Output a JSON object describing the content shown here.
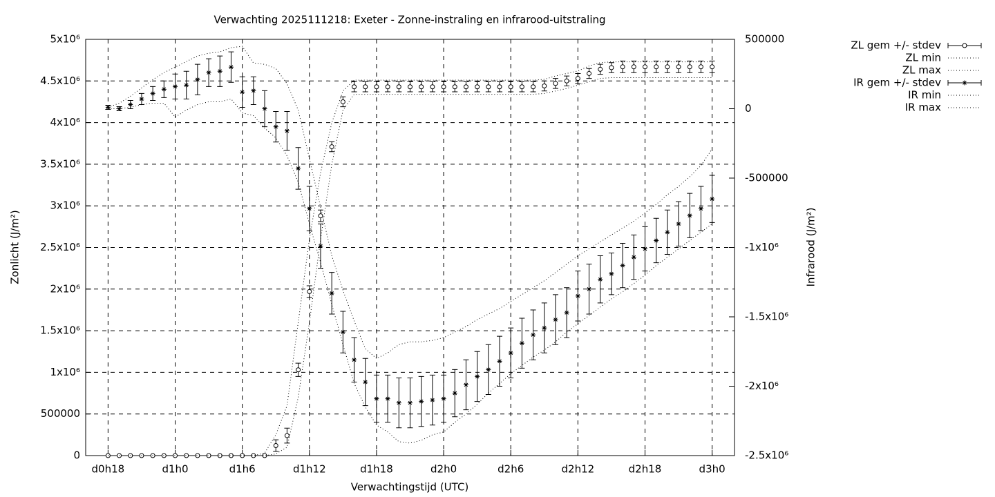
{
  "chart_data": {
    "type": "line",
    "title": "Verwachting 2025111218: Exeter - Zonne-instraling en infrarood-uitstraling",
    "x_label": "Verwachtingstijd (UTC)",
    "y_label": "Zonlicht (J/m²)",
    "y2_label": "Infrarood (J/m²)",
    "x": [
      18,
      19,
      20,
      21,
      22,
      23,
      24,
      25,
      26,
      27,
      28,
      29,
      30,
      31,
      32,
      33,
      34,
      35,
      36,
      37,
      38,
      39,
      40,
      41,
      42,
      43,
      44,
      45,
      46,
      47,
      48,
      49,
      50,
      51,
      52,
      53,
      54,
      55,
      56,
      57,
      58,
      59,
      60,
      61,
      62,
      63,
      64,
      65,
      66,
      67,
      68,
      69,
      70,
      71,
      72
    ],
    "xlim": [
      16,
      74
    ],
    "xticks": [
      {
        "value": 18,
        "label": "d0h18"
      },
      {
        "value": 24,
        "label": "d1h0"
      },
      {
        "value": 30,
        "label": "d1h6"
      },
      {
        "value": 36,
        "label": "d1h12"
      },
      {
        "value": 42,
        "label": "d1h18"
      },
      {
        "value": 48,
        "label": "d2h0"
      },
      {
        "value": 54,
        "label": "d2h6"
      },
      {
        "value": 60,
        "label": "d2h12"
      },
      {
        "value": 66,
        "label": "d2h18"
      },
      {
        "value": 72,
        "label": "d3h0"
      }
    ],
    "ylim": [
      0,
      5000000
    ],
    "yticks": [
      0,
      500000,
      {
        "value": 1000000,
        "label": "1x10⁶"
      },
      {
        "value": 1500000,
        "label": "1.5x10⁶"
      },
      {
        "value": 2000000,
        "label": "2x10⁶"
      },
      {
        "value": 2500000,
        "label": "2.5x10⁶"
      },
      {
        "value": 3000000,
        "label": "3x10⁶"
      },
      {
        "value": 3500000,
        "label": "3.5x10⁶"
      },
      {
        "value": 4000000,
        "label": "4x10⁶"
      },
      {
        "value": 4500000,
        "label": "4.5x10⁶"
      },
      {
        "value": 5000000,
        "label": "5x10⁶"
      }
    ],
    "y2lim": [
      -2500000,
      500000
    ],
    "y2ticks": [
      {
        "value": -2500000,
        "label": "-2.5x10⁶"
      },
      {
        "value": -2000000,
        "label": "-2x10⁶"
      },
      {
        "value": -1500000,
        "label": "-1.5x10⁶"
      },
      {
        "value": -1000000,
        "label": "-1x10⁶"
      },
      -500000,
      0,
      500000
    ],
    "grid": true,
    "legend": "outside-right",
    "series": [
      {
        "name": "ZL gem +/- stdev",
        "color": "#000000",
        "style": "errorbar",
        "marker": "circle",
        "values": [
          0,
          0,
          0,
          0,
          0,
          0,
          0,
          0,
          0,
          0,
          0,
          0,
          0,
          0,
          0,
          120000,
          240000,
          1030000,
          1970000,
          2880000,
          3710000,
          4250000,
          4430000,
          4430000,
          4430000,
          4430000,
          4430000,
          4430000,
          4430000,
          4430000,
          4430000,
          4430000,
          4430000,
          4430000,
          4430000,
          4430000,
          4430000,
          4430000,
          4430000,
          4440000,
          4470000,
          4500000,
          4530000,
          4590000,
          4640000,
          4660000,
          4670000,
          4670000,
          4670000,
          4670000,
          4670000,
          4670000,
          4670000,
          4670000,
          4670000
        ],
        "errors": [
          0,
          0,
          0,
          0,
          0,
          0,
          0,
          0,
          0,
          0,
          0,
          0,
          0,
          0,
          0,
          70000,
          90000,
          80000,
          70000,
          70000,
          60000,
          60000,
          60000,
          60000,
          60000,
          60000,
          60000,
          60000,
          60000,
          60000,
          60000,
          60000,
          60000,
          60000,
          60000,
          60000,
          60000,
          60000,
          60000,
          60000,
          60000,
          60000,
          60000,
          60000,
          60000,
          60000,
          70000,
          70000,
          70000,
          70000,
          70000,
          70000,
          70000,
          70000,
          70000
        ]
      },
      {
        "name": "ZL min",
        "color": "#000000",
        "style": "dotted",
        "values": [
          0,
          0,
          0,
          0,
          0,
          0,
          0,
          0,
          0,
          0,
          0,
          0,
          0,
          0,
          0,
          20000,
          100000,
          700000,
          1600000,
          2600000,
          3500000,
          4150000,
          4340000,
          4340000,
          4340000,
          4340000,
          4340000,
          4340000,
          4340000,
          4340000,
          4340000,
          4340000,
          4340000,
          4340000,
          4340000,
          4340000,
          4340000,
          4340000,
          4340000,
          4350000,
          4380000,
          4410000,
          4450000,
          4490000,
          4530000,
          4540000,
          4540000,
          4540000,
          4540000,
          4540000,
          4540000,
          4540000,
          4540000,
          4540000,
          4540000
        ]
      },
      {
        "name": "ZL max",
        "color": "#000000",
        "style": "dotted",
        "values": [
          0,
          0,
          0,
          0,
          0,
          0,
          0,
          0,
          0,
          0,
          0,
          0,
          0,
          0,
          30000,
          250000,
          600000,
          1600000,
          2600000,
          3400000,
          4000000,
          4380000,
          4510000,
          4510000,
          4510000,
          4510000,
          4510000,
          4510000,
          4510000,
          4510000,
          4510000,
          4510000,
          4510000,
          4510000,
          4510000,
          4510000,
          4510000,
          4510000,
          4510000,
          4520000,
          4560000,
          4590000,
          4620000,
          4680000,
          4720000,
          4730000,
          4730000,
          4730000,
          4730000,
          4730000,
          4730000,
          4730000,
          4730000,
          4730000,
          4730000
        ]
      },
      {
        "name": "IR gem +/- stdev",
        "color": "#000000",
        "style": "errorbar",
        "marker": "star",
        "axis": "y2",
        "values": [
          10000,
          0,
          30000,
          70000,
          110000,
          140000,
          160000,
          170000,
          210000,
          260000,
          270000,
          300000,
          120000,
          130000,
          0,
          -130000,
          -160000,
          -430000,
          -720000,
          -990000,
          -1330000,
          -1610000,
          -1810000,
          -1970000,
          -2090000,
          -2090000,
          -2120000,
          -2120000,
          -2110000,
          -2100000,
          -2090000,
          -2050000,
          -1990000,
          -1930000,
          -1880000,
          -1820000,
          -1760000,
          -1690000,
          -1630000,
          -1580000,
          -1520000,
          -1470000,
          -1350000,
          -1300000,
          -1230000,
          -1190000,
          -1130000,
          -1070000,
          -1010000,
          -950000,
          -890000,
          -830000,
          -770000,
          -720000,
          -650000
        ],
        "errors": [
          15000,
          15000,
          30000,
          40000,
          50000,
          60000,
          90000,
          100000,
          110000,
          100000,
          110000,
          110000,
          110000,
          100000,
          130000,
          110000,
          140000,
          150000,
          160000,
          160000,
          150000,
          150000,
          160000,
          170000,
          170000,
          170000,
          180000,
          180000,
          180000,
          180000,
          170000,
          170000,
          180000,
          180000,
          180000,
          180000,
          180000,
          180000,
          180000,
          180000,
          180000,
          180000,
          180000,
          180000,
          170000,
          150000,
          160000,
          160000,
          160000,
          160000,
          160000,
          160000,
          160000,
          160000,
          170000
        ]
      },
      {
        "name": "IR min",
        "color": "#000000",
        "style": "dotted",
        "axis": "y2",
        "values": [
          0,
          0,
          10000,
          30000,
          40000,
          40000,
          -60000,
          -10000,
          30000,
          50000,
          50000,
          70000,
          -30000,
          -50000,
          -140000,
          -210000,
          -340000,
          -530000,
          -830000,
          -1110000,
          -1410000,
          -1700000,
          -1980000,
          -2150000,
          -2280000,
          -2330000,
          -2400000,
          -2410000,
          -2390000,
          -2350000,
          -2330000,
          -2260000,
          -2200000,
          -2130000,
          -2050000,
          -1980000,
          -1910000,
          -1850000,
          -1790000,
          -1740000,
          -1680000,
          -1610000,
          -1550000,
          -1490000,
          -1430000,
          -1370000,
          -1320000,
          -1260000,
          -1200000,
          -1130000,
          -1070000,
          -1010000,
          -950000,
          -890000,
          -830000
        ]
      },
      {
        "name": "IR max",
        "color": "#000000",
        "style": "dotted",
        "axis": "y2",
        "values": [
          10000,
          40000,
          90000,
          150000,
          210000,
          260000,
          300000,
          340000,
          380000,
          400000,
          410000,
          440000,
          450000,
          330000,
          320000,
          290000,
          180000,
          -10000,
          -360000,
          -710000,
          -1060000,
          -1310000,
          -1530000,
          -1730000,
          -1800000,
          -1760000,
          -1700000,
          -1680000,
          -1680000,
          -1670000,
          -1650000,
          -1610000,
          -1570000,
          -1520000,
          -1480000,
          -1440000,
          -1390000,
          -1340000,
          -1290000,
          -1240000,
          -1180000,
          -1120000,
          -1060000,
          -1010000,
          -960000,
          -910000,
          -860000,
          -810000,
          -750000,
          -690000,
          -620000,
          -560000,
          -490000,
          -410000,
          -290000
        ]
      }
    ]
  }
}
